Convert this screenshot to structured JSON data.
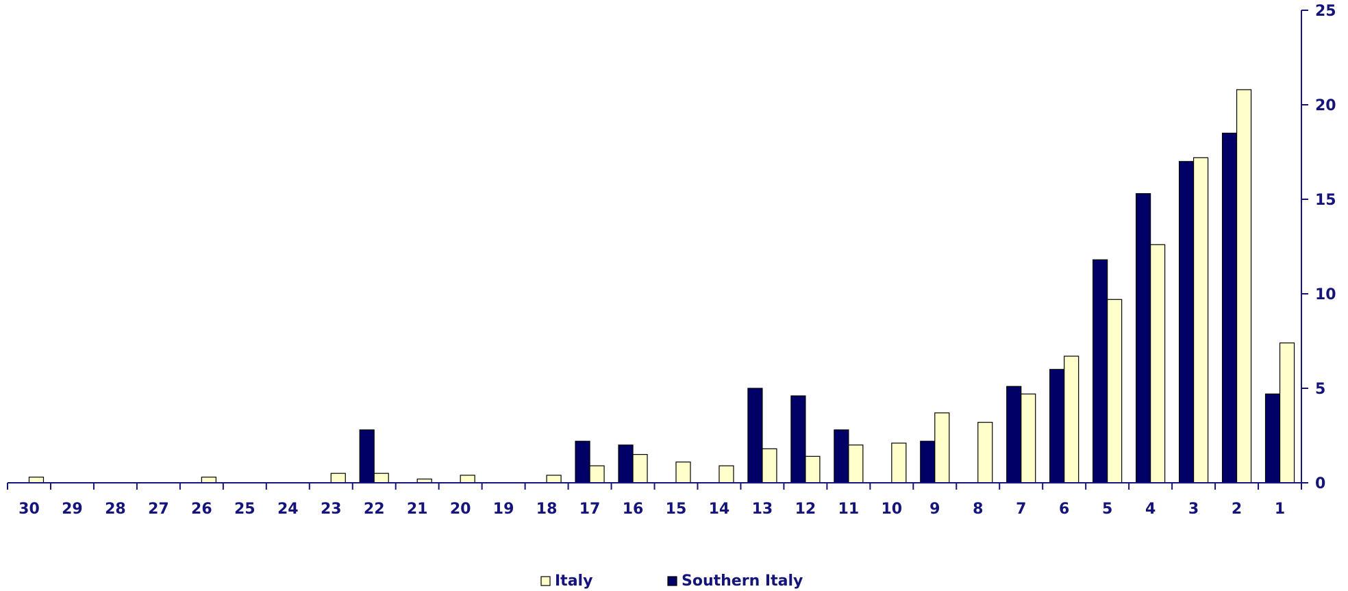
{
  "chart_data": {
    "type": "bar",
    "categories": [
      "30",
      "29",
      "28",
      "27",
      "26",
      "25",
      "24",
      "23",
      "22",
      "21",
      "20",
      "19",
      "18",
      "17",
      "16",
      "15",
      "14",
      "13",
      "12",
      "11",
      "10",
      "9",
      "8",
      "7",
      "6",
      "5",
      "4",
      "3",
      "2",
      "1"
    ],
    "series": [
      {
        "name": "Southern Italy",
        "color": "#000066",
        "values": [
          0,
          0,
          0,
          0,
          0,
          0,
          0,
          0,
          2.8,
          0,
          0,
          0,
          0,
          2.2,
          2.0,
          0,
          0,
          5.0,
          4.6,
          2.8,
          0,
          2.2,
          0,
          5.1,
          6.0,
          11.8,
          15.3,
          17.0,
          18.5,
          4.7
        ]
      },
      {
        "name": "Italy",
        "color": "#ffffcc",
        "values": [
          0.3,
          0,
          0,
          0,
          0.3,
          0,
          0,
          0.5,
          0.5,
          0.2,
          0.4,
          0,
          0.4,
          0.9,
          1.5,
          1.1,
          0.9,
          1.8,
          1.4,
          2.0,
          2.1,
          3.7,
          3.2,
          4.7,
          6.7,
          9.7,
          12.6,
          17.2,
          20.8,
          7.4
        ]
      }
    ],
    "ylim": [
      0,
      25
    ],
    "y_ticks": [
      "0",
      "5",
      "10",
      "15",
      "20",
      "25"
    ],
    "y_axis_side": "right",
    "grid": false,
    "legend_position": "bottom-center",
    "axis_color": "#14147a"
  }
}
